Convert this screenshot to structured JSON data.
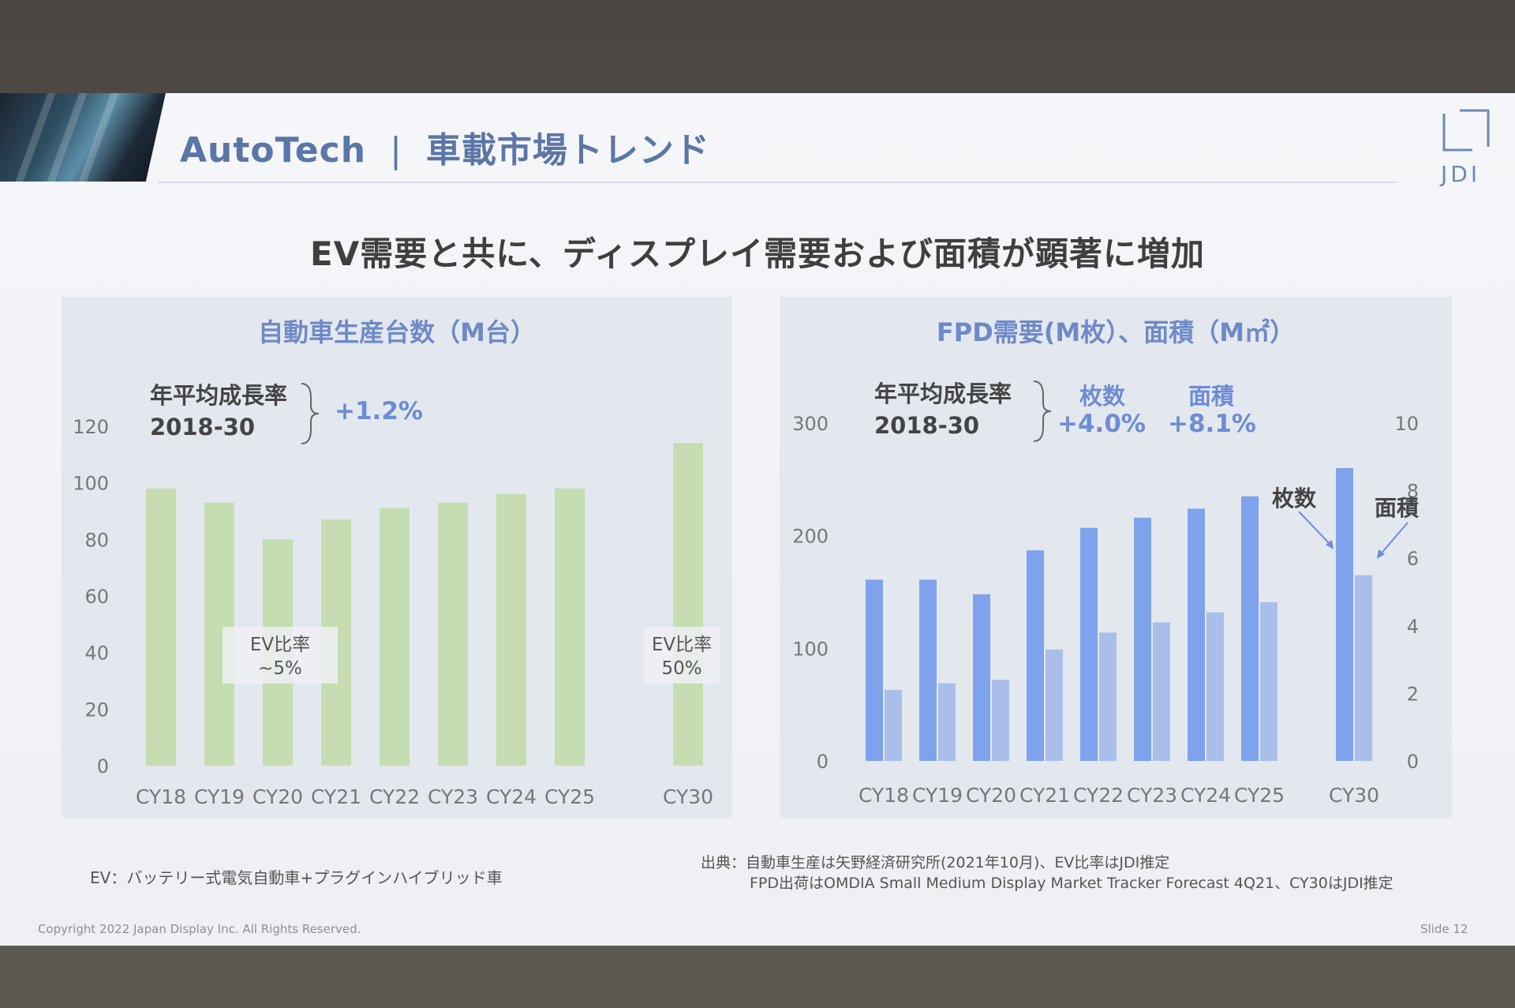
{
  "header": {
    "title": "AutoTech",
    "separator": "|",
    "subtitle": "車載市場トレンド",
    "logo": "JDI"
  },
  "headline": "EV需要と共に、ディスプレイ需要および面積が顕著に増加",
  "left_panel": {
    "cagr_label_1": "年平均成長率",
    "cagr_label_2": "2018-30",
    "cagr_value": "+1.2%",
    "ev_box_1": {
      "line1": "EV比率",
      "line2": "~5%"
    },
    "ev_box_2": {
      "line1": "EV比率",
      "line2": "50%"
    }
  },
  "right_panel": {
    "cagr_label_1": "年平均成長率",
    "cagr_label_2": "2018-30",
    "col1_header": "枚数",
    "col1_value": "+4.0%",
    "col2_header": "面積",
    "col2_value": "+8.1%",
    "annot_count": "枚数",
    "annot_area": "面積"
  },
  "chart_data": [
    {
      "type": "bar",
      "title": "自動車生産台数（M台）",
      "categories": [
        "CY18",
        "CY19",
        "CY20",
        "CY21",
        "CY22",
        "CY23",
        "CY24",
        "CY25",
        "CY30"
      ],
      "series": [
        {
          "name": "自動車生産台数",
          "values": [
            98,
            93,
            80,
            87,
            91,
            93,
            96,
            98,
            114
          ]
        }
      ],
      "ylim": [
        0,
        120
      ],
      "yticks": [
        0,
        20,
        40,
        60,
        80,
        100,
        120
      ],
      "color": "#c5ddb1"
    },
    {
      "type": "bar",
      "title": "FPD需要(M枚）、面積（M㎡）",
      "categories": [
        "CY18",
        "CY19",
        "CY20",
        "CY21",
        "CY22",
        "CY23",
        "CY24",
        "CY25",
        "CY30"
      ],
      "series": [
        {
          "name": "枚数",
          "axis": "left",
          "values": [
            161,
            161,
            148,
            187,
            207,
            216,
            224,
            235,
            260
          ]
        },
        {
          "name": "面積",
          "axis": "right",
          "values": [
            2.1,
            2.3,
            2.4,
            3.3,
            3.8,
            4.1,
            4.4,
            4.7,
            5.5
          ]
        }
      ],
      "ylim_left": [
        0,
        300
      ],
      "yticks_left": [
        0,
        100,
        200,
        300
      ],
      "ylim_right": [
        0,
        10
      ],
      "yticks_right": [
        0,
        2,
        4,
        6,
        8,
        10
      ],
      "colors": {
        "count": "#7ea3ec",
        "area": "#a9bfe9"
      }
    }
  ],
  "footer": {
    "ev_note": "EV：バッテリー式電気自動車+プラグインハイブリッド車",
    "source_1": "出典：自動車生産は矢野経済研究所(2021年10月)、EV比率はJDI推定",
    "source_2": "FPD出荷はOMDIA Small Medium Display Market Tracker Forecast 4Q21、CY30はJDI推定",
    "copyright": "Copyright 2022 Japan Display Inc. All Rights Reserved.",
    "slide_no": "Slide 12"
  }
}
